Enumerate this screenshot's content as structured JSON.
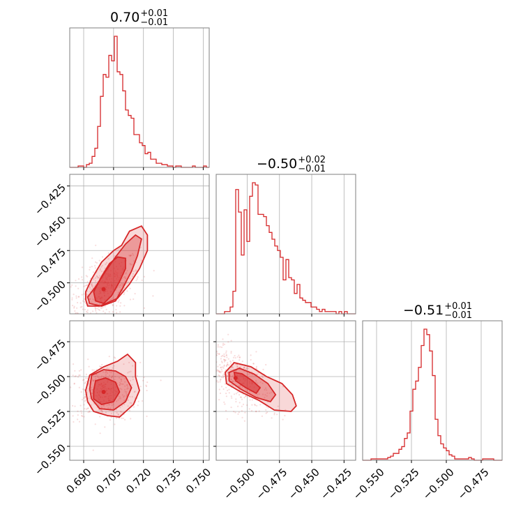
{
  "chart_data": {
    "type": "corner",
    "color": "#d62728",
    "grid": true,
    "params": [
      {
        "title_value": "0.70",
        "title_plus": "+0.01",
        "title_minus": "−0.01",
        "range": [
          0.683,
          0.753
        ],
        "ticks": [
          0.69,
          0.705,
          0.72,
          0.735,
          0.75
        ],
        "tick_labels": [
          "0.690",
          "0.705",
          "0.720",
          "0.735",
          "0.750"
        ],
        "hist_x_start": 0.683,
        "hist_bin_width": 0.0014,
        "hist_counts": [
          0,
          0,
          0,
          1,
          1,
          0,
          2,
          3,
          8,
          14,
          30,
          52,
          68,
          66,
          82,
          78,
          96,
          70,
          68,
          56,
          42,
          38,
          36,
          24,
          24,
          18,
          16,
          10,
          11,
          6,
          6,
          3,
          3,
          2,
          2,
          1,
          1,
          0,
          1,
          1,
          0,
          0,
          0,
          0,
          1,
          0,
          0,
          0,
          1,
          0
        ]
      },
      {
        "title_value": "−0.50",
        "title_plus": "+0.02",
        "title_minus": "−0.01",
        "range": [
          -0.524,
          -0.416
        ],
        "ticks": [
          -0.5,
          -0.475,
          -0.45,
          -0.425
        ],
        "tick_labels": [
          "−0.500",
          "−0.475",
          "−0.450",
          "−0.425"
        ],
        "hist_x_start": -0.524,
        "hist_bin_width": 0.00216,
        "hist_counts": [
          0,
          0,
          0,
          1,
          1,
          3,
          10,
          55,
          45,
          26,
          46,
          32,
          52,
          58,
          57,
          44,
          44,
          43,
          39,
          36,
          33,
          30,
          28,
          25,
          15,
          24,
          16,
          15,
          9,
          13,
          7,
          6,
          5,
          5,
          3,
          3,
          2,
          1,
          2,
          1,
          1,
          1,
          1,
          0,
          1,
          0,
          1,
          0,
          0,
          0
        ]
      },
      {
        "title_value": "−0.51",
        "title_plus": "+0.01",
        "title_minus": "−0.01",
        "range": [
          -0.56,
          -0.46
        ],
        "ticks": [
          -0.55,
          -0.525,
          -0.5,
          -0.475
        ],
        "tick_labels": [
          "−0.550",
          "−0.525",
          "−0.500",
          "−0.475"
        ],
        "hist_x_start": -0.56,
        "hist_bin_width": 0.002,
        "hist_counts": [
          0,
          0,
          0,
          1,
          1,
          1,
          1,
          1,
          1,
          2,
          3,
          5,
          5,
          8,
          10,
          16,
          20,
          36,
          52,
          58,
          68,
          84,
          96,
          92,
          80,
          62,
          30,
          18,
          12,
          9,
          7,
          4,
          3,
          1,
          1,
          1,
          1,
          1,
          2,
          1,
          0,
          0,
          0,
          1,
          1,
          1,
          1,
          0,
          0,
          0
        ]
      }
    ],
    "pairs": [
      {
        "x_param": 0,
        "y_param": 1,
        "peak": [
          0.7,
          -0.505
        ],
        "y_ticks": [
          -0.5,
          -0.475,
          -0.45,
          -0.425
        ],
        "y_tick_labels": [
          "−0.500",
          "−0.475",
          "−0.450",
          "−0.425"
        ],
        "contours": [
          [
            [
              0.696,
              -0.514
            ],
            [
              0.7,
              -0.516
            ],
            [
              0.704,
              -0.51
            ],
            [
              0.708,
              -0.499
            ],
            [
              0.711,
              -0.489
            ],
            [
              0.711,
              -0.481
            ],
            [
              0.707,
              -0.48
            ],
            [
              0.703,
              -0.485
            ],
            [
              0.699,
              -0.495
            ],
            [
              0.695,
              -0.507
            ]
          ],
          [
            [
              0.693,
              -0.516
            ],
            [
              0.699,
              -0.518
            ],
            [
              0.706,
              -0.514
            ],
            [
              0.71,
              -0.503
            ],
            [
              0.714,
              -0.491
            ],
            [
              0.717,
              -0.479
            ],
            [
              0.719,
              -0.466
            ],
            [
              0.716,
              -0.463
            ],
            [
              0.711,
              -0.47
            ],
            [
              0.706,
              -0.48
            ],
            [
              0.701,
              -0.491
            ],
            [
              0.696,
              -0.503
            ],
            [
              0.692,
              -0.511
            ]
          ],
          [
            [
              0.691,
              -0.513
            ],
            [
              0.692,
              -0.518
            ],
            [
              0.698,
              -0.518
            ],
            [
              0.707,
              -0.512
            ],
            [
              0.713,
              -0.501
            ],
            [
              0.718,
              -0.489
            ],
            [
              0.722,
              -0.475
            ],
            [
              0.722,
              -0.463
            ],
            [
              0.719,
              -0.456
            ],
            [
              0.713,
              -0.46
            ],
            [
              0.709,
              -0.471
            ],
            [
              0.705,
              -0.475
            ],
            [
              0.699,
              -0.484
            ],
            [
              0.694,
              -0.497
            ],
            [
              0.691,
              -0.507
            ]
          ]
        ]
      },
      {
        "x_param": 0,
        "y_param": 2,
        "peak": [
          0.7,
          -0.511
        ],
        "y_ticks": [
          -0.55,
          -0.525,
          -0.5,
          -0.475
        ],
        "y_tick_labels": [
          "−0.550",
          "−0.525",
          "−0.500",
          "−0.475"
        ],
        "contours": [
          [
            [
              0.695,
              -0.51
            ],
            [
              0.696,
              -0.503
            ],
            [
              0.701,
              -0.501
            ],
            [
              0.706,
              -0.504
            ],
            [
              0.708,
              -0.511
            ],
            [
              0.705,
              -0.518
            ],
            [
              0.699,
              -0.52
            ],
            [
              0.695,
              -0.516
            ]
          ],
          [
            [
              0.693,
              -0.509
            ],
            [
              0.694,
              -0.499
            ],
            [
              0.7,
              -0.495
            ],
            [
              0.706,
              -0.496
            ],
            [
              0.711,
              -0.5
            ],
            [
              0.714,
              -0.508
            ],
            [
              0.711,
              -0.518
            ],
            [
              0.705,
              -0.524
            ],
            [
              0.698,
              -0.523
            ],
            [
              0.694,
              -0.516
            ]
          ],
          [
            [
              0.691,
              -0.51
            ],
            [
              0.693,
              -0.499
            ],
            [
              0.7,
              -0.493
            ],
            [
              0.707,
              -0.489
            ],
            [
              0.712,
              -0.484
            ],
            [
              0.716,
              -0.49
            ],
            [
              0.716,
              -0.5
            ],
            [
              0.718,
              -0.51
            ],
            [
              0.715,
              -0.52
            ],
            [
              0.708,
              -0.529
            ],
            [
              0.702,
              -0.528
            ],
            [
              0.695,
              -0.525
            ],
            [
              0.692,
              -0.518
            ]
          ]
        ]
      },
      {
        "x_param": 1,
        "y_param": 2,
        "peak": [
          -0.509,
          -0.501
        ],
        "y_ticks": [
          -0.55,
          -0.525,
          -0.5,
          -0.475
        ],
        "y_tick_labels": [
          "−0.550",
          "−0.525",
          "−0.500",
          "−0.475"
        ],
        "contours": [
          [
            [
              -0.51,
              -0.497
            ],
            [
              -0.504,
              -0.498
            ],
            [
              -0.496,
              -0.503
            ],
            [
              -0.49,
              -0.508
            ],
            [
              -0.493,
              -0.512
            ],
            [
              -0.501,
              -0.508
            ],
            [
              -0.509,
              -0.503
            ]
          ],
          [
            [
              -0.514,
              -0.497
            ],
            [
              -0.506,
              -0.494
            ],
            [
              -0.495,
              -0.498
            ],
            [
              -0.484,
              -0.505
            ],
            [
              -0.478,
              -0.513
            ],
            [
              -0.482,
              -0.518
            ],
            [
              -0.493,
              -0.515
            ],
            [
              -0.505,
              -0.509
            ],
            [
              -0.514,
              -0.503
            ]
          ],
          [
            [
              -0.517,
              -0.497
            ],
            [
              -0.51,
              -0.49
            ],
            [
              -0.497,
              -0.493
            ],
            [
              -0.485,
              -0.5
            ],
            [
              -0.473,
              -0.505
            ],
            [
              -0.465,
              -0.513
            ],
            [
              -0.462,
              -0.521
            ],
            [
              -0.466,
              -0.525
            ],
            [
              -0.479,
              -0.524
            ],
            [
              -0.491,
              -0.517
            ],
            [
              -0.505,
              -0.511
            ],
            [
              -0.516,
              -0.505
            ]
          ]
        ]
      }
    ]
  }
}
